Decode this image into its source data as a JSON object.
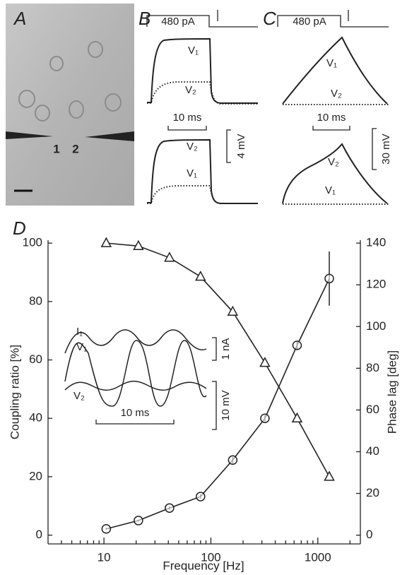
{
  "panels": {
    "A": {
      "letter": "A",
      "electrodes": [
        "1",
        "2"
      ]
    },
    "B": {
      "letter": "B",
      "stimulus": "480 pA",
      "traces_top": [
        "V₁",
        "V₂"
      ],
      "traces_bottom": [
        "V₂",
        "V₁"
      ],
      "time_scale": "10 ms",
      "voltage_scale": "4 mV"
    },
    "C": {
      "letter": "C",
      "stimulus": "480 pA",
      "traces_top": [
        "V₁",
        "V₂"
      ],
      "traces_bottom": [
        "V₂",
        "V₁"
      ],
      "time_scale": "10 ms",
      "voltage_scale": "30 mV"
    }
  },
  "chart_data": {
    "type": "line",
    "panel_letter": "D",
    "xlabel": "Frequency [Hz]",
    "ylabel": "Coupling ratio [%]",
    "y2label": "Phase lag [deg]",
    "x": [
      10.5,
      21,
      41,
      80,
      160,
      320,
      640,
      1280
    ],
    "log_x": true,
    "xlim": [
      3,
      2500
    ],
    "xticks": [
      10,
      100,
      1000
    ],
    "ylim": [
      -3,
      101
    ],
    "yticks": [
      0,
      20,
      40,
      60,
      80,
      100
    ],
    "y2lim": [
      -4.2,
      141.4
    ],
    "y2ticks": [
      0,
      20,
      40,
      60,
      80,
      100,
      120,
      140
    ],
    "series": [
      {
        "color": "#222222",
        "marker": "triangle",
        "values": [
          100,
          99,
          95,
          88.5,
          76.5,
          59,
          40,
          20
        ]
      },
      {
        "color": "#222222",
        "marker": "circle",
        "axis": "y2",
        "values": [
          3,
          7,
          13,
          18.5,
          36,
          56,
          91,
          123
        ],
        "errors": [
          0.5,
          0.5,
          0.8,
          1,
          1.5,
          1.5,
          2,
          13
        ]
      }
    ],
    "annotations": [
      "I₁",
      "V₁",
      "V₂",
      "1 nA",
      "10 mV",
      "10 ms"
    ]
  }
}
